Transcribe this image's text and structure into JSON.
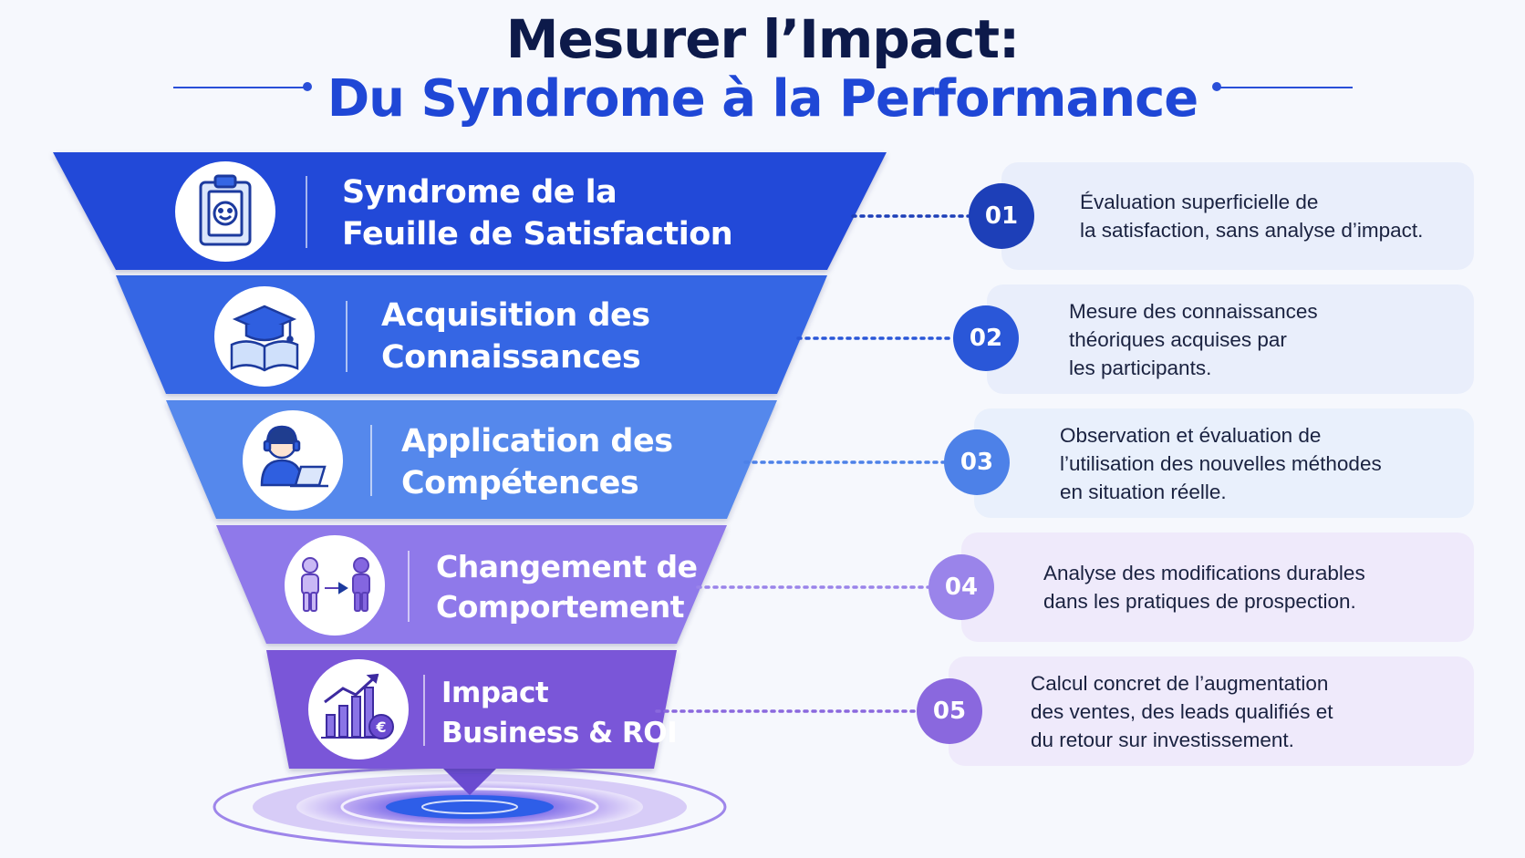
{
  "title": {
    "line1": "Mesurer l’Impact:",
    "line2": "Du Syndrome à la Performance"
  },
  "colors": {
    "title_dark": "#0d1a4a",
    "title_accent": "#1f47d6",
    "stage1": "#2148d8",
    "stage2": "#3566e4",
    "stage3": "#5488ec",
    "stage4": "#8f79ea",
    "stage5": "#7a56d8"
  },
  "stages": [
    {
      "number": "01",
      "label": [
        "Syndrome de la",
        "Feuille de Satisfaction"
      ],
      "icon": "clipboard-smiley-icon",
      "description": [
        "Évaluation superficielle de",
        "la satisfaction, sans analyse d’impact."
      ]
    },
    {
      "number": "02",
      "label": [
        "Acquisition des",
        "Connaissances"
      ],
      "icon": "graduation-book-icon",
      "description": [
        "Mesure des connaissances",
        "théoriques acquises par",
        "les participants."
      ]
    },
    {
      "number": "03",
      "label": [
        "Application des",
        "Compétences"
      ],
      "icon": "person-laptop-icon",
      "description": [
        "Observation et évaluation de",
        "l’utilisation des nouvelles méthodes",
        "en situation réelle."
      ]
    },
    {
      "number": "04",
      "label": [
        "Changement de",
        "Comportement"
      ],
      "icon": "person-transform-icon",
      "description": [
        "Analyse des modifications durables",
        "dans les pratiques de prospection."
      ]
    },
    {
      "number": "05",
      "label": [
        "Impact",
        "Business & ROI"
      ],
      "icon": "growth-chart-euro-icon",
      "description": [
        "Calcul concret de l’augmentation",
        "des ventes, des leads qualifiés et",
        "du retour sur investissement."
      ]
    }
  ]
}
